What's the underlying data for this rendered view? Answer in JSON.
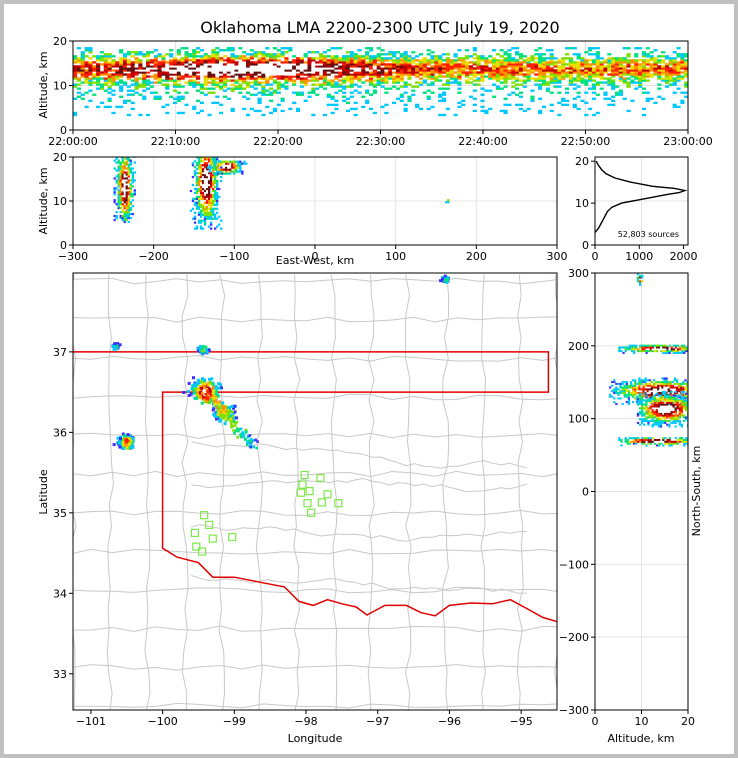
{
  "chart_data": [
    {
      "id": "time_height",
      "type": "heatmap",
      "title": "Oklahoma LMA 2200-2300 UTC July 19, 2020",
      "ylabel": "Altitude, km",
      "ylim": [
        0,
        20
      ],
      "y_ticks": [
        "0",
        "10",
        "20"
      ],
      "x_ticks": [
        "22:00:00",
        "22:10:00",
        "22:20:00",
        "22:30:00",
        "22:40:00",
        "22:50:00",
        "23:00:00"
      ],
      "xlim_minutes": [
        0,
        60
      ],
      "core_altitude_km": [
        11,
        16
      ],
      "band_altitude_km": [
        3,
        20
      ]
    },
    {
      "id": "ew_altitude",
      "type": "heatmap",
      "xlabel": "East-West, km",
      "ylabel": "Altitude, km",
      "xlim": [
        -300,
        300
      ],
      "ylim": [
        0,
        20
      ],
      "x_ticks": [
        "−300",
        "−200",
        "−100",
        "0",
        "100",
        "200",
        "300"
      ],
      "y_ticks": [
        "0",
        "10",
        "20"
      ],
      "clusters": [
        {
          "x": -237,
          "halfwidth": 8,
          "zlo": 5,
          "zhi": 20,
          "peak": 13
        },
        {
          "x": -136,
          "halfwidth": 12,
          "zlo": 3.5,
          "zhi": 20,
          "peak": 14
        },
        {
          "x": -110,
          "halfwidth": 15,
          "zlo": 16,
          "zhi": 19,
          "peak": 17.5
        },
        {
          "x": 162,
          "halfwidth": 2,
          "zlo": 9.5,
          "zhi": 10.3,
          "peak": 10
        }
      ]
    },
    {
      "id": "altitude_histogram",
      "type": "line",
      "xlim": [
        0,
        2100
      ],
      "ylim": [
        0,
        21
      ],
      "x_ticks": [
        "0",
        "1000",
        "2000"
      ],
      "y_ticks": [
        "0",
        "10",
        "20"
      ],
      "annotation": "52,803 sources",
      "points": [
        [
          0,
          3
        ],
        [
          40,
          3.5
        ],
        [
          80,
          4
        ],
        [
          130,
          5
        ],
        [
          180,
          6
        ],
        [
          230,
          7
        ],
        [
          280,
          8
        ],
        [
          380,
          9
        ],
        [
          600,
          10
        ],
        [
          1100,
          11
        ],
        [
          1600,
          12
        ],
        [
          1900,
          12.5
        ],
        [
          2030,
          13
        ],
        [
          1800,
          13.5
        ],
        [
          1300,
          14
        ],
        [
          800,
          15
        ],
        [
          450,
          16
        ],
        [
          250,
          17
        ],
        [
          150,
          18
        ],
        [
          80,
          19
        ],
        [
          30,
          20
        ]
      ]
    },
    {
      "id": "plan_view",
      "type": "heatmap",
      "xlabel": "Longitude",
      "ylabel": "Latitude",
      "xlim": [
        -101.25,
        -94.5
      ],
      "ylim": [
        32.55,
        37.98
      ],
      "x_ticks": [
        "−101",
        "−100",
        "−99",
        "−98",
        "−97",
        "−96",
        "−95"
      ],
      "y_ticks": [
        "33",
        "34",
        "35",
        "36",
        "37"
      ],
      "clusters": [
        {
          "lon": -99.4,
          "lat": 36.5,
          "r": 0.12,
          "peak": 1.0
        },
        {
          "lon": -99.15,
          "lat": 36.25,
          "r": 0.1,
          "peak": 0.5
        },
        {
          "lon": -100.5,
          "lat": 35.88,
          "r": 0.07,
          "peak": 0.75
        },
        {
          "lon": -99.43,
          "lat": 37.03,
          "r": 0.04,
          "peak": 0.45
        },
        {
          "lon": -100.65,
          "lat": 37.07,
          "r": 0.03,
          "peak": 0.3
        },
        {
          "lon": -96.05,
          "lat": 37.9,
          "r": 0.03,
          "peak": 0.3
        }
      ],
      "stations": [
        [
          -98.02,
          35.47
        ],
        [
          -97.8,
          35.43
        ],
        [
          -98.05,
          35.35
        ],
        [
          -97.95,
          35.27
        ],
        [
          -98.07,
          35.25
        ],
        [
          -97.7,
          35.23
        ],
        [
          -97.78,
          35.13
        ],
        [
          -97.55,
          35.12
        ],
        [
          -97.98,
          35.12
        ],
        [
          -97.93,
          35.0
        ],
        [
          -99.42,
          34.97
        ],
        [
          -99.35,
          34.85
        ],
        [
          -99.55,
          34.75
        ],
        [
          -99.03,
          34.7
        ],
        [
          -99.3,
          34.68
        ],
        [
          -99.53,
          34.58
        ],
        [
          -99.45,
          34.52
        ]
      ],
      "ok_outline": [
        [
          -103,
          37
        ],
        [
          -94.62,
          37
        ],
        [
          -94.62,
          36.5
        ],
        [
          -100,
          36.5
        ],
        [
          -100,
          34.56
        ],
        [
          -99.8,
          34.45
        ],
        [
          -99.5,
          34.38
        ],
        [
          -99.3,
          34.2
        ],
        [
          -99.0,
          34.2
        ],
        [
          -98.6,
          34.13
        ],
        [
          -98.3,
          34.08
        ],
        [
          -98.1,
          33.9
        ],
        [
          -97.9,
          33.85
        ],
        [
          -97.7,
          33.92
        ],
        [
          -97.5,
          33.87
        ],
        [
          -97.3,
          33.83
        ],
        [
          -97.15,
          33.73
        ],
        [
          -96.9,
          33.85
        ],
        [
          -96.6,
          33.85
        ],
        [
          -96.4,
          33.76
        ],
        [
          -96.2,
          33.72
        ],
        [
          -96.0,
          33.85
        ],
        [
          -95.7,
          33.88
        ],
        [
          -95.4,
          33.87
        ],
        [
          -95.15,
          33.92
        ],
        [
          -94.9,
          33.8
        ],
        [
          -94.7,
          33.7
        ],
        [
          -94.47,
          33.64
        ]
      ],
      "county_color": "#c8c8c8",
      "state_color": "#e00000"
    },
    {
      "id": "altitude_ns",
      "type": "heatmap",
      "xlabel": "Altitude, km",
      "ylabel": "North-South, km",
      "xlim": [
        0,
        20
      ],
      "ylim": [
        -300,
        300
      ],
      "x_ticks": [
        "0",
        "10",
        "20"
      ],
      "y_ticks": [
        "−300",
        "−200",
        "−100",
        "0",
        "100",
        "200",
        "300"
      ],
      "clusters": [
        {
          "y": 137,
          "halfheight": 12,
          "zlo": 3,
          "zhi": 20,
          "peak": 14
        },
        {
          "y": 112,
          "halfheight": 16,
          "zlo": 9,
          "zhi": 20,
          "peak": 15
        },
        {
          "y": 68,
          "halfheight": 4,
          "zlo": 5,
          "zhi": 20,
          "peak": 13
        },
        {
          "y": 195,
          "halfheight": 4,
          "zlo": 5,
          "zhi": 20,
          "peak": 14
        },
        {
          "y": 290,
          "halfheight": 5,
          "zlo": 9,
          "zhi": 10,
          "peak": 9.5
        }
      ]
    }
  ]
}
